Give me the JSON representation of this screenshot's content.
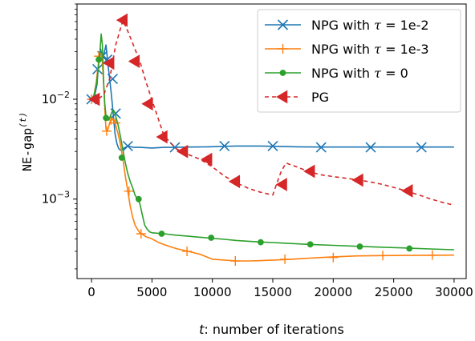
{
  "chart_data": {
    "type": "line",
    "xlabel_var": "t",
    "xlabel_text": ": number of iterations",
    "ylabel_text": "NE-gap",
    "ylabel_sup": "(t)",
    "xlim": [
      -1200,
      31000
    ],
    "ylim": [
      0.00016,
      0.09
    ],
    "yscale": "log",
    "x_ticks": [
      0,
      5000,
      10000,
      15000,
      20000,
      25000,
      30000
    ],
    "x_tick_labels": [
      "0",
      "5000",
      "10000",
      "15000",
      "20000",
      "25000",
      "30000"
    ],
    "y_ticks": [
      0.01,
      0.001
    ],
    "y_tick_base": "10",
    "y_tick_exps": [
      "−2",
      "−3"
    ],
    "legend_position": "upper right",
    "series": [
      {
        "name": "NPG with τ = 1e-2",
        "label_prefix": "NPG with ",
        "label_symbol": "τ",
        "label_suffix": " = 1e-2",
        "color": "#1f77b4",
        "marker": "x",
        "dash": "",
        "x": [
          0,
          150,
          300,
          450,
          600,
          750,
          900,
          1050,
          1200,
          1350,
          1500,
          1650,
          1800,
          1950,
          2100,
          2250,
          2400,
          2600,
          2800,
          3000,
          3500,
          4000,
          5000,
          6000,
          7000,
          8000,
          9000,
          10000,
          11000,
          12000,
          13000,
          14000,
          15000,
          16000,
          17000,
          18000,
          19000,
          20000,
          21000,
          22000,
          23000,
          24000,
          25000,
          26000,
          27000,
          28000,
          29000,
          30000
        ],
        "y": [
          0.01,
          0.0105,
          0.0115,
          0.014,
          0.025,
          0.032,
          0.026,
          0.029,
          0.035,
          0.023,
          0.016,
          0.011,
          0.007,
          0.0045,
          0.0036,
          0.0032,
          0.0031,
          0.0032,
          0.0033,
          0.0034,
          0.0033,
          0.0033,
          0.00325,
          0.0033,
          0.0033,
          0.00332,
          0.00333,
          0.00335,
          0.00338,
          0.0034,
          0.0034,
          0.0034,
          0.00338,
          0.00336,
          0.00334,
          0.00333,
          0.00332,
          0.00332,
          0.00332,
          0.00332,
          0.00332,
          0.00332,
          0.00332,
          0.00332,
          0.00332,
          0.00332,
          0.00332,
          0.00332
        ],
        "marker_x": [
          0,
          500,
          900,
          1300,
          1750,
          2000,
          3000,
          6900,
          11000,
          15000,
          19000,
          23100,
          27300
        ],
        "marker_y": [
          0.01,
          0.02,
          0.027,
          0.025,
          0.016,
          0.0072,
          0.0034,
          0.0033,
          0.0034,
          0.0034,
          0.0033,
          0.0033,
          0.0033
        ]
      },
      {
        "name": "NPG with τ = 1e-3",
        "label_prefix": "NPG with ",
        "label_symbol": "τ",
        "label_suffix": " = 1e-3",
        "color": "#ff7f0e",
        "marker": "+",
        "dash": "",
        "x": [
          0,
          200,
          400,
          550,
          700,
          850,
          1000,
          1100,
          1200,
          1300,
          1400,
          1500,
          1600,
          1700,
          1800,
          1900,
          2000,
          2200,
          2400,
          2600,
          2800,
          3000,
          3200,
          3400,
          3600,
          3800,
          4000,
          4500,
          5000,
          5500,
          6000,
          7000,
          8000,
          9000,
          10000,
          11000,
          12000,
          13000,
          14000,
          15000,
          16000,
          17000,
          18000,
          19000,
          20000,
          22000,
          24000,
          26000,
          28000,
          30000
        ],
        "y": [
          0.01,
          0.011,
          0.015,
          0.022,
          0.029,
          0.028,
          0.015,
          0.008,
          0.005,
          0.0048,
          0.0052,
          0.0058,
          0.0062,
          0.0064,
          0.0063,
          0.006,
          0.0055,
          0.0045,
          0.0035,
          0.0025,
          0.0017,
          0.0012,
          0.00085,
          0.00066,
          0.00055,
          0.0005,
          0.00046,
          0.00042,
          0.0004,
          0.00037,
          0.00035,
          0.00032,
          0.0003,
          0.00028,
          0.00025,
          0.000245,
          0.00024,
          0.00024,
          0.000242,
          0.000245,
          0.000248,
          0.000252,
          0.000256,
          0.00026,
          0.000264,
          0.00027,
          0.000272,
          0.000273,
          0.000274,
          0.000275
        ],
        "marker_x": [
          0,
          600,
          1250,
          1600,
          2000,
          3100,
          4100,
          7900,
          11900,
          16000,
          20000,
          24100,
          28200
        ],
        "marker_y": [
          0.01,
          0.027,
          0.0048,
          0.0062,
          0.0058,
          0.0012,
          0.00045,
          0.0003,
          0.00024,
          0.00025,
          0.00026,
          0.000272,
          0.000275
        ]
      },
      {
        "name": "NPG with τ = 0",
        "label_prefix": "NPG with ",
        "label_symbol": "τ",
        "label_suffix": " = 0",
        "color": "#2ca02c",
        "marker": "o",
        "dash": "",
        "x": [
          0,
          200,
          400,
          550,
          700,
          800,
          900,
          1000,
          1100,
          1200,
          1300,
          1400,
          1500,
          1600,
          1700,
          1800,
          1900,
          2000,
          2200,
          2400,
          2600,
          2800,
          3000,
          3200,
          3400,
          3600,
          3800,
          4000,
          4200,
          4400,
          4600,
          4800,
          5000,
          5500,
          6000,
          7000,
          8000,
          9000,
          10000,
          11000,
          12000,
          13000,
          14000,
          15000,
          16000,
          18000,
          20000,
          22000,
          24000,
          26000,
          28000,
          30000
        ],
        "y": [
          0.01,
          0.011,
          0.014,
          0.02,
          0.03,
          0.045,
          0.035,
          0.015,
          0.009,
          0.0068,
          0.0063,
          0.0062,
          0.0065,
          0.007,
          0.0075,
          0.0078,
          0.0075,
          0.0068,
          0.0055,
          0.0042,
          0.0031,
          0.0023,
          0.0018,
          0.0015,
          0.0013,
          0.0011,
          0.001,
          0.0009,
          0.0007,
          0.00055,
          0.0005,
          0.00047,
          0.00046,
          0.000455,
          0.00045,
          0.000435,
          0.000425,
          0.000415,
          0.000405,
          0.000395,
          0.000385,
          0.000378,
          0.000372,
          0.000367,
          0.000362,
          0.000352,
          0.000344,
          0.000337,
          0.00033,
          0.000324,
          0.000317,
          0.000311
        ],
        "marker_x": [
          600,
          1200,
          2500,
          3900,
          5800,
          9900,
          14000,
          18100,
          22200,
          26300
        ],
        "marker_y": [
          0.025,
          0.0065,
          0.0026,
          0.001,
          0.00045,
          0.00041,
          0.00037,
          0.000352,
          0.000335,
          0.00032
        ]
      },
      {
        "name": "PG",
        "label_prefix": "PG",
        "label_symbol": "",
        "label_suffix": "",
        "color": "#d62728",
        "marker": "<",
        "dash": "5,4",
        "x": [
          0,
          500,
          1000,
          1500,
          2000,
          2600,
          3000,
          3500,
          4000,
          4500,
          5000,
          5500,
          6000,
          7000,
          8000,
          9000,
          10000,
          11000,
          12000,
          13000,
          14000,
          15000,
          15300,
          15700,
          16100,
          16500,
          17000,
          18000,
          19000,
          20000,
          21000,
          22000,
          23000,
          24000,
          25000,
          26000,
          27000,
          28000,
          29000,
          30000
        ],
        "y": [
          0.01,
          0.01,
          0.011,
          0.016,
          0.035,
          0.062,
          0.048,
          0.034,
          0.024,
          0.015,
          0.0098,
          0.0065,
          0.0043,
          0.0032,
          0.0028,
          0.0025,
          0.0021,
          0.0017,
          0.00145,
          0.00128,
          0.00117,
          0.0011,
          0.0014,
          0.0019,
          0.0023,
          0.0022,
          0.0021,
          0.00188,
          0.00175,
          0.00168,
          0.00162,
          0.00156,
          0.00149,
          0.00141,
          0.00131,
          0.00121,
          0.00111,
          0.00101,
          0.00093,
          0.00087
        ],
        "marker_x": [
          300,
          1500,
          2600,
          3600,
          4700,
          5900,
          7600,
          9600,
          11900,
          15800,
          18100,
          22100,
          26200
        ],
        "marker_y": [
          0.01,
          0.023,
          0.062,
          0.024,
          0.009,
          0.0042,
          0.003,
          0.0025,
          0.0015,
          0.0014,
          0.0019,
          0.00155,
          0.00121
        ]
      }
    ]
  }
}
